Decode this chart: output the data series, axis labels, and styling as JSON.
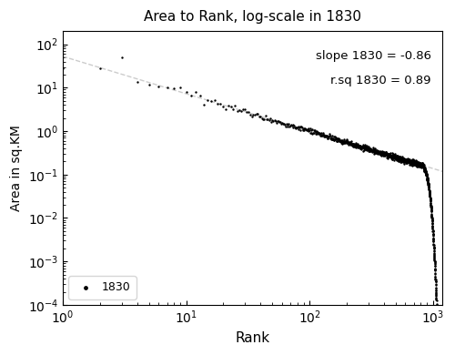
{
  "title": "Area to Rank, log-scale in 1830",
  "xlabel": "Rank",
  "ylabel": "Area in sq.KM",
  "slope": -0.86,
  "r_sq": 0.89,
  "year": 1830,
  "annotation_slope": "slope 1830 = -0.86",
  "annotation_rsq": "r.sq 1830 = 0.89",
  "xlim": [
    1,
    1200
  ],
  "ylim": [
    0.0001,
    200
  ],
  "n_points": 1100,
  "intercept_log": 1.72,
  "dot_color": "black",
  "dot_size": 3,
  "line_color": "#cccccc",
  "background_color": "white",
  "legend_label": "1830",
  "rank_start": 1,
  "rank_end": 1100,
  "area_at_rank1": 50,
  "area_at_rank1000": 0.025,
  "sharp_drop_start": 800,
  "sharp_drop_end": 1050
}
